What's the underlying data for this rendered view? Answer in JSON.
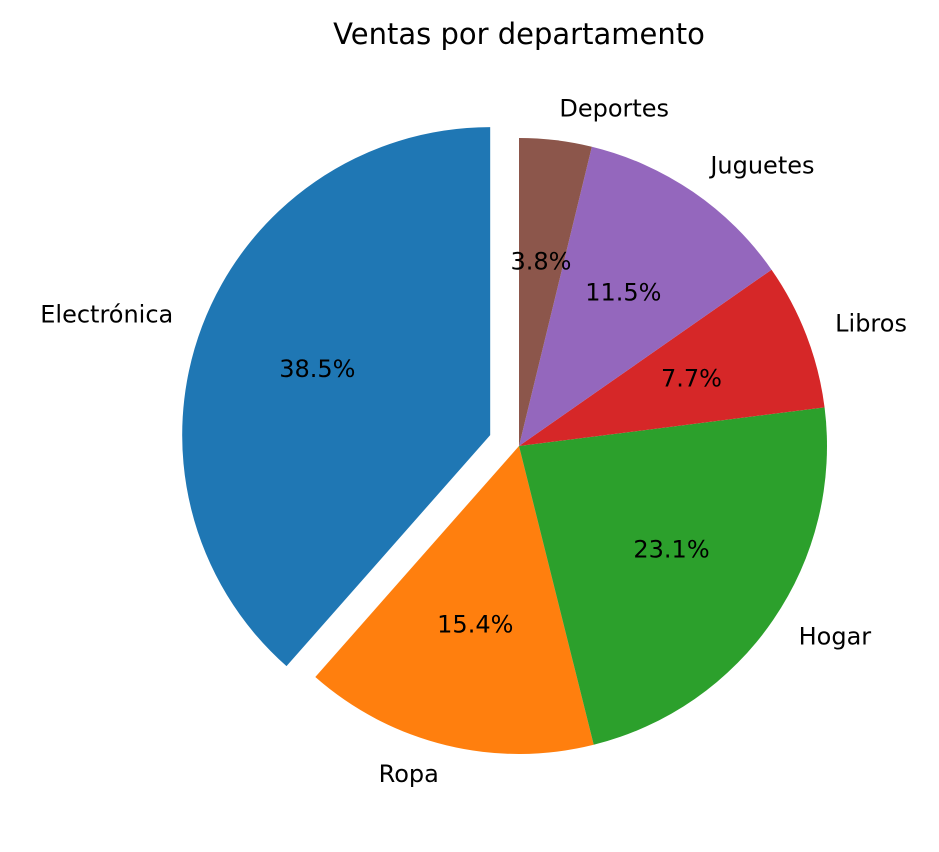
{
  "chart_data": {
    "type": "pie",
    "title": "Ventas por departamento",
    "categories": [
      "Electrónica",
      "Ropa",
      "Hogar",
      "Libros",
      "Juguetes",
      "Deportes"
    ],
    "values": [
      38.5,
      15.4,
      23.1,
      7.7,
      11.5,
      3.8
    ],
    "percent_labels": [
      "38.5%",
      "15.4%",
      "23.1%",
      "7.7%",
      "11.5%",
      "3.8%"
    ],
    "colors": [
      "#1f77b4",
      "#ff7f0e",
      "#2ca02c",
      "#d62728",
      "#9467bd",
      "#8c564b"
    ],
    "explode": [
      0.1,
      0,
      0,
      0,
      0,
      0
    ],
    "start_angle_deg": 90,
    "direction": "counterclockwise",
    "legend": "none"
  }
}
